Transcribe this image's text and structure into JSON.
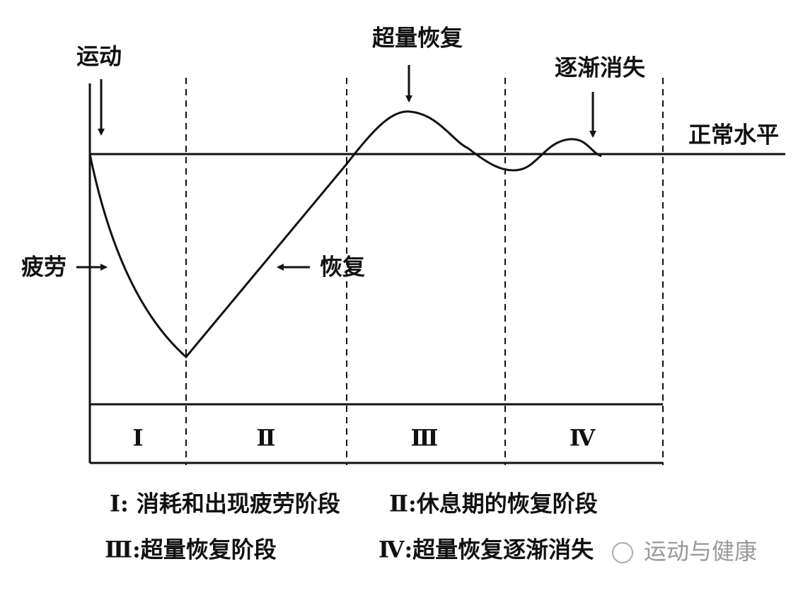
{
  "labels": {
    "exercise": "运动",
    "supercompensation": "超量恢复",
    "fading": "逐渐消失",
    "normal": "正常水平",
    "fatigue": "疲劳",
    "recovery": "恢复"
  },
  "phases": [
    "Ⅰ",
    "Ⅱ",
    "Ⅲ",
    "Ⅳ"
  ],
  "legend": [
    "Ⅰ: 消耗和出现疲劳阶段",
    "Ⅱ:休息期的恢复阶段",
    "Ⅲ:超量恢复阶段",
    "Ⅳ:超量恢复逐渐消失"
  ],
  "watermark": "运动与健康"
}
